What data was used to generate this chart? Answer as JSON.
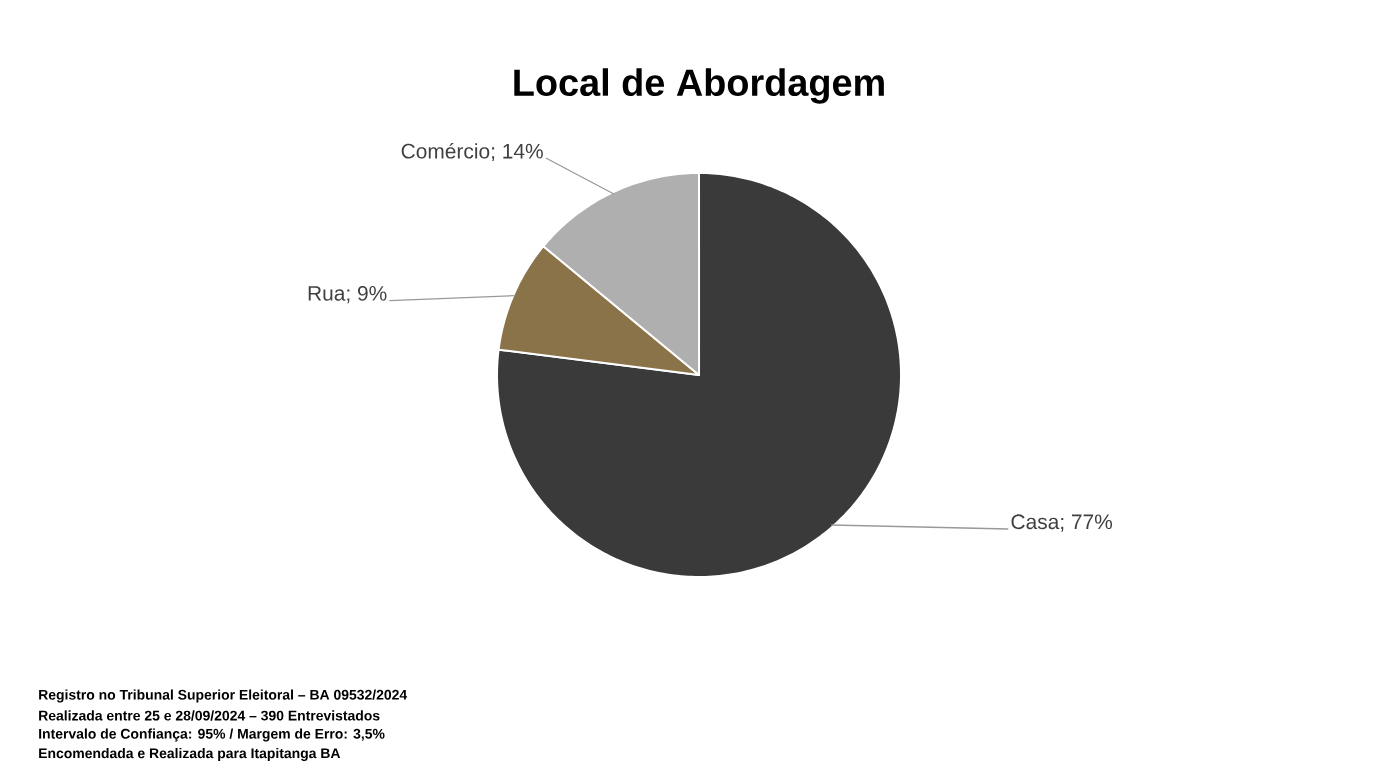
{
  "chart_data": {
    "type": "pie",
    "title": "Local de Abordagem",
    "categories": [
      "Casa",
      "Rua",
      "Comércio"
    ],
    "values": [
      77,
      9,
      14
    ],
    "colors": [
      "#3a3a3a",
      "#8b7349",
      "#afafaf"
    ],
    "value_labels": [
      "; 77%",
      "; 9%",
      "; 14%"
    ],
    "annotations": [
      "Registro no Tribunal Superior Eleitoral – BA 09532/2024",
      "Realizada entre 25 e 28/09/2024 – 390 Entrevistados",
      "Intervalo de Confiança: 95% / Margem de Erro: 3,5%",
      "Encomendada e Realizada para Itapitanga BA"
    ]
  }
}
